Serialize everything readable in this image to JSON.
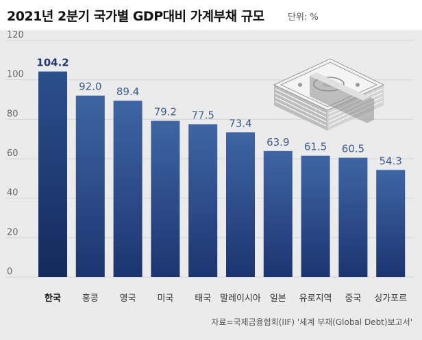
{
  "header": {
    "title": "2021년 2분기 국가별 GDP대비 가계부채 규모",
    "unit": "단위: %"
  },
  "chart_data": {
    "type": "bar",
    "title": "2021년 2분기 국가별 GDP대비 가계부채 규모",
    "categories": [
      "한국",
      "홍콩",
      "영국",
      "미국",
      "태국",
      "말레이시아",
      "일본",
      "유로지역",
      "중국",
      "싱가포르"
    ],
    "values": [
      104.2,
      92.0,
      89.4,
      79.2,
      77.5,
      73.4,
      63.9,
      61.5,
      60.5,
      54.3
    ],
    "value_labels": [
      "104.2",
      "92.0",
      "89.4",
      "79.2",
      "77.5",
      "73.4",
      "63.9",
      "61.5",
      "60.5",
      "54.3"
    ],
    "highlight_index": 0,
    "ylim": [
      0,
      120
    ],
    "yticks": [
      0,
      20,
      40,
      60,
      80,
      100,
      120
    ],
    "grid": true,
    "xlabel": "",
    "ylabel": "",
    "colors": {
      "bar_top": "#3f65a4",
      "bar_bottom": "#1c3570",
      "highlight_top": "#2c4f8d",
      "highlight_bottom": "#132a5c",
      "grid": "#d4d4d4",
      "background": "#ebebeb"
    }
  },
  "footer": {
    "source": "자료=국제금융협회(IIF) '세계 부채(Global Debt)보고서'"
  },
  "illustration": {
    "icon": "money-stack-icon"
  }
}
